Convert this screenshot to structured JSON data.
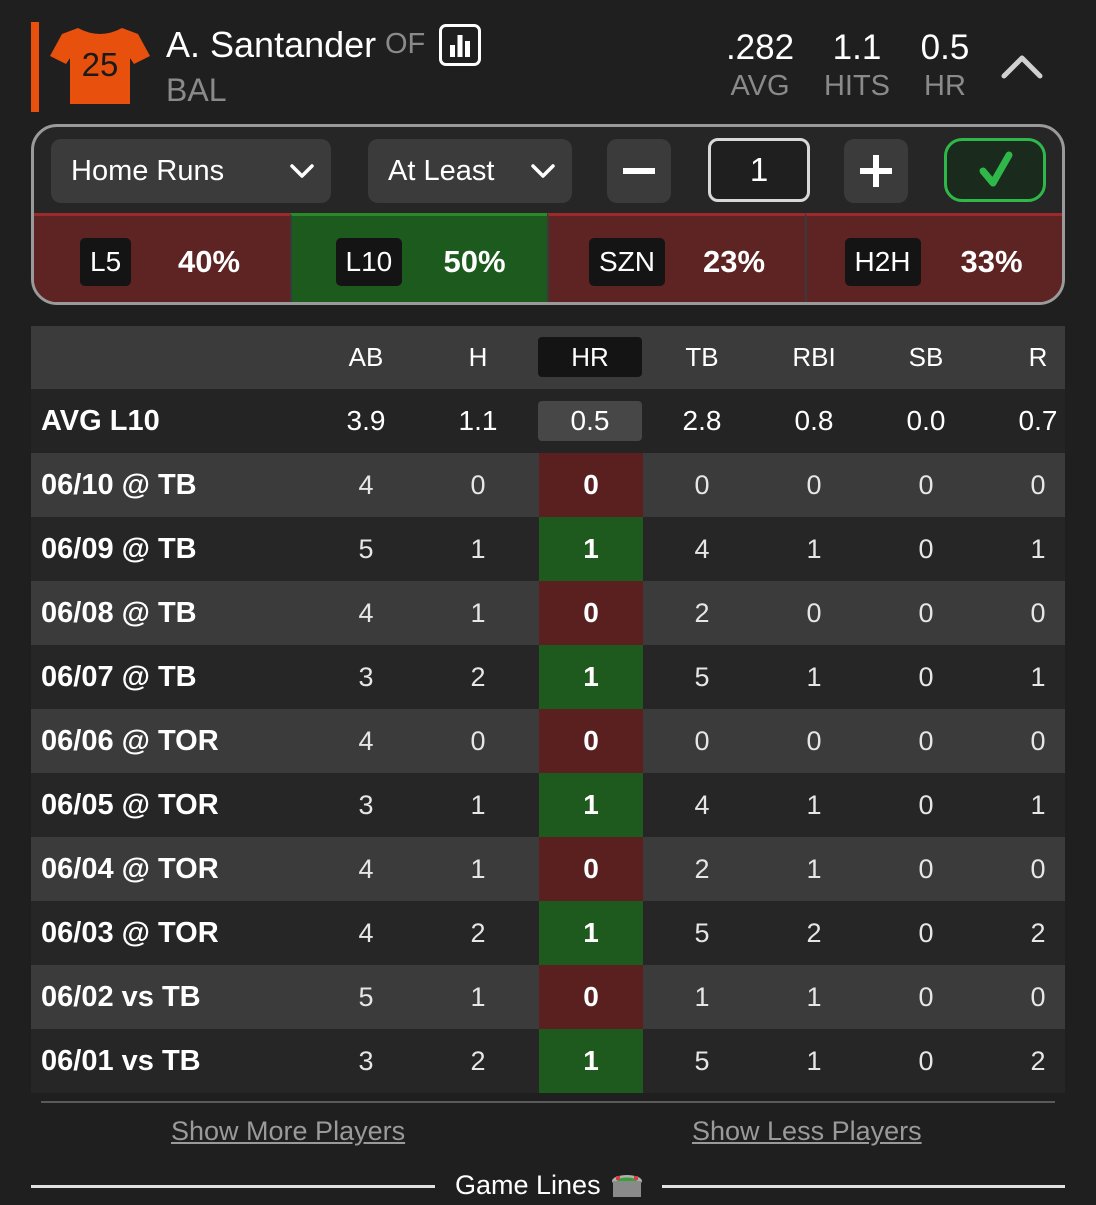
{
  "player": {
    "jersey_number": "25",
    "name": "A. Santander",
    "position": "OF",
    "team": "BAL",
    "jersey_color": "#e8500e"
  },
  "header_stats": [
    {
      "value": ".282",
      "label": "AVG"
    },
    {
      "value": "1.1",
      "label": "HITS"
    },
    {
      "value": "0.5",
      "label": "HR"
    }
  ],
  "controls": {
    "stat_select": "Home Runs",
    "comparator_select": "At Least",
    "quantity": "1",
    "decrement_icon": "minus-icon",
    "increment_icon": "plus-icon",
    "confirm_icon": "checkmark-icon"
  },
  "splits": [
    {
      "tag": "L5",
      "pct": "40%",
      "status": "red"
    },
    {
      "tag": "L10",
      "pct": "50%",
      "status": "green"
    },
    {
      "tag": "SZN",
      "pct": "23%",
      "status": "red"
    },
    {
      "tag": "H2H",
      "pct": "33%",
      "status": "red"
    }
  ],
  "table": {
    "columns": [
      "AB",
      "H",
      "HR",
      "TB",
      "RBI",
      "SB",
      "R"
    ],
    "avg_row": {
      "label": "AVG L10",
      "values": [
        "3.9",
        "1.1",
        "0.5",
        "2.8",
        "0.8",
        "0.0",
        "0.7"
      ]
    },
    "games": [
      {
        "label": "06/10 @ TB",
        "values": [
          "4",
          "0",
          "0",
          "0",
          "0",
          "0",
          "0"
        ],
        "hit": false
      },
      {
        "label": "06/09 @ TB",
        "values": [
          "5",
          "1",
          "1",
          "4",
          "1",
          "0",
          "1"
        ],
        "hit": true
      },
      {
        "label": "06/08 @ TB",
        "values": [
          "4",
          "1",
          "0",
          "2",
          "0",
          "0",
          "0"
        ],
        "hit": false
      },
      {
        "label": "06/07 @ TB",
        "values": [
          "3",
          "2",
          "1",
          "5",
          "1",
          "0",
          "1"
        ],
        "hit": true
      },
      {
        "label": "06/06 @ TOR",
        "values": [
          "4",
          "0",
          "0",
          "0",
          "0",
          "0",
          "0"
        ],
        "hit": false
      },
      {
        "label": "06/05 @ TOR",
        "values": [
          "3",
          "1",
          "1",
          "4",
          "1",
          "0",
          "1"
        ],
        "hit": true
      },
      {
        "label": "06/04 @ TOR",
        "values": [
          "4",
          "1",
          "0",
          "2",
          "1",
          "0",
          "0"
        ],
        "hit": false
      },
      {
        "label": "06/03 @ TOR",
        "values": [
          "4",
          "2",
          "1",
          "5",
          "2",
          "0",
          "2"
        ],
        "hit": true
      },
      {
        "label": "06/02 vs TB",
        "values": [
          "5",
          "1",
          "0",
          "1",
          "1",
          "0",
          "0"
        ],
        "hit": false
      },
      {
        "label": "06/01 vs TB",
        "values": [
          "3",
          "2",
          "1",
          "5",
          "1",
          "0",
          "2"
        ],
        "hit": true
      }
    ]
  },
  "footer": {
    "show_more": "Show More Players",
    "show_less": "Show Less Players",
    "section_title": "Game Lines",
    "section_icon": "stadium-icon"
  },
  "colors": {
    "hit_green": "#1e5a1e",
    "miss_red": "#5a2020",
    "confirm_green": "#2fb84a"
  }
}
